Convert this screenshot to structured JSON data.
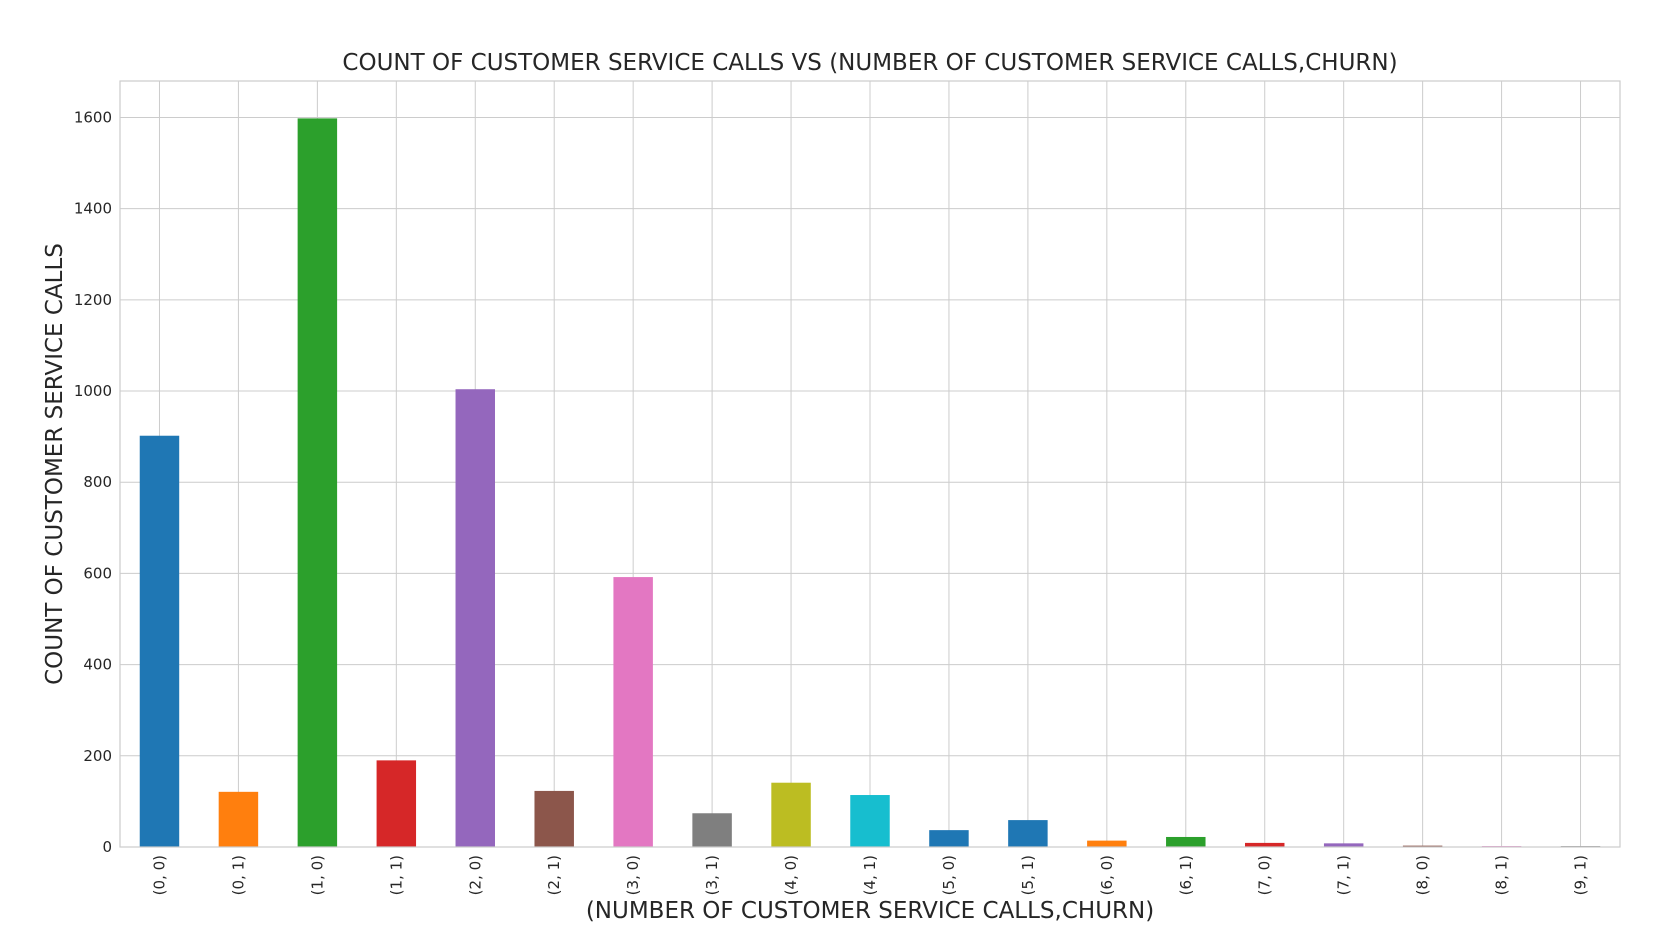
{
  "chart_data": {
    "type": "bar",
    "title": "COUNT OF CUSTOMER SERVICE CALLS VS (NUMBER OF CUSTOMER SERVICE CALLS,CHURN)",
    "xlabel": "(NUMBER OF CUSTOMER SERVICE CALLS,CHURN)",
    "ylabel": "COUNT OF CUSTOMER SERVICE CALLS",
    "categories": [
      "(0, 0)",
      "(0, 1)",
      "(1, 0)",
      "(1, 1)",
      "(2, 0)",
      "(2, 1)",
      "(3, 0)",
      "(3, 1)",
      "(4, 0)",
      "(4, 1)",
      "(5, 0)",
      "(5, 1)",
      "(6, 0)",
      "(6, 1)",
      "(7, 0)",
      "(7, 1)",
      "(8, 0)",
      "(8, 1)",
      "(9, 1)"
    ],
    "values": [
      902,
      121,
      1598,
      190,
      1004,
      123,
      592,
      74,
      141,
      114,
      37,
      59,
      14,
      22,
      9,
      8,
      3,
      2,
      2
    ],
    "colors": [
      "#1f77b4",
      "#ff7f0e",
      "#2ca02c",
      "#d62728",
      "#9467bd",
      "#8c564b",
      "#e377c2",
      "#7f7f7f",
      "#bcbd22",
      "#17becf",
      "#1f77b4",
      "#1f77b4",
      "#ff7f0e",
      "#2ca02c",
      "#d62728",
      "#9467bd",
      "#8c564b",
      "#e377c2",
      "#7f7f7f"
    ],
    "ylim": [
      0,
      1680
    ],
    "yticks": [
      "0",
      "200",
      "400",
      "600",
      "800",
      "1000",
      "1200",
      "1400",
      "1600"
    ],
    "grid": true,
    "legend": "none"
  }
}
